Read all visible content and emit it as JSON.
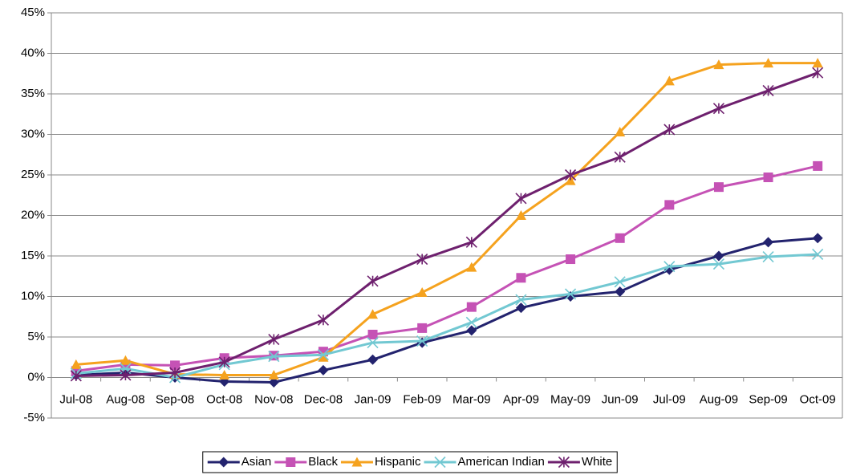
{
  "chart_data": {
    "type": "line",
    "categories": [
      "Jul-08",
      "Aug-08",
      "Sep-08",
      "Oct-08",
      "Nov-08",
      "Dec-08",
      "Jan-09",
      "Feb-09",
      "Mar-09",
      "Apr-09",
      "May-09",
      "Jun-09",
      "Jul-09",
      "Aug-09",
      "Sep-09",
      "Oct-09"
    ],
    "ylim": [
      -5,
      45
    ],
    "yticks": [
      {
        "value": -5,
        "label": "-5%"
      },
      {
        "value": 0,
        "label": "0%"
      },
      {
        "value": 5,
        "label": "5%"
      },
      {
        "value": 10,
        "label": "10%"
      },
      {
        "value": 15,
        "label": "15%"
      },
      {
        "value": 20,
        "label": "20%"
      },
      {
        "value": 25,
        "label": "25%"
      },
      {
        "value": 30,
        "label": "30%"
      },
      {
        "value": 35,
        "label": "35%"
      },
      {
        "value": 40,
        "label": "40%"
      },
      {
        "value": 45,
        "label": "45%"
      }
    ],
    "grid": true,
    "legend": "bottom",
    "series": [
      {
        "name": "Asian",
        "color": "#23236e",
        "marker": "diamond",
        "values": [
          0.3,
          0.6,
          0.0,
          -0.5,
          -0.6,
          0.9,
          2.2,
          4.3,
          5.8,
          8.6,
          10.0,
          10.6,
          13.3,
          15.0,
          16.7,
          17.2
        ]
      },
      {
        "name": "Black",
        "color": "#c552b5",
        "marker": "square",
        "values": [
          0.8,
          1.6,
          1.5,
          2.4,
          2.7,
          3.2,
          5.3,
          6.1,
          8.7,
          12.3,
          14.6,
          17.2,
          21.3,
          23.5,
          24.7,
          26.1
        ]
      },
      {
        "name": "Hispanic",
        "color": "#f5a21e",
        "marker": "triangle",
        "values": [
          1.6,
          2.1,
          0.4,
          0.3,
          0.3,
          2.5,
          7.8,
          10.5,
          13.6,
          20.0,
          24.3,
          30.3,
          36.6,
          38.6,
          38.8,
          38.8
        ]
      },
      {
        "name": "American Indian",
        "color": "#72c8d2",
        "marker": "x",
        "values": [
          0.5,
          1.1,
          0.0,
          1.6,
          2.6,
          2.8,
          4.3,
          4.5,
          6.8,
          9.6,
          10.3,
          11.8,
          13.7,
          14.0,
          14.9,
          15.2
        ]
      },
      {
        "name": "White",
        "color": "#6e206e",
        "marker": "star",
        "values": [
          0.2,
          0.3,
          0.6,
          1.9,
          4.7,
          7.1,
          11.9,
          14.6,
          16.7,
          22.1,
          25.0,
          27.2,
          30.6,
          33.2,
          35.4,
          37.6
        ]
      }
    ]
  }
}
